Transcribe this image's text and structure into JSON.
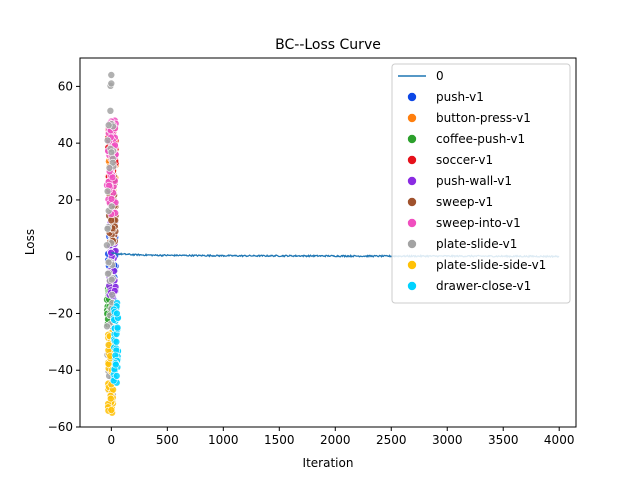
{
  "chart_data": {
    "type": "scatter",
    "title": "BC--Loss Curve",
    "xlabel": "Iteration",
    "ylabel": "Loss",
    "xlim": [
      -280,
      4150
    ],
    "ylim": [
      -60,
      70
    ],
    "xticks": [
      0,
      500,
      1000,
      1500,
      2000,
      2500,
      3000,
      3500,
      4000
    ],
    "yticks": [
      -60,
      -40,
      -20,
      0,
      20,
      40,
      60
    ],
    "legend_position": "top-right",
    "line_series": {
      "name": "0",
      "color": "#1f77b4",
      "points": [
        [
          0,
          1.2
        ],
        [
          50,
          1.0
        ],
        [
          100,
          0.9
        ],
        [
          200,
          0.7
        ],
        [
          400,
          0.5
        ],
        [
          800,
          0.4
        ],
        [
          1200,
          0.3
        ],
        [
          1600,
          0.3
        ],
        [
          2000,
          0.25
        ],
        [
          2400,
          0.2
        ],
        [
          2800,
          0.2
        ],
        [
          3200,
          0.2
        ],
        [
          3600,
          0.15
        ],
        [
          4000,
          0.1
        ]
      ]
    },
    "scatter_series": [
      {
        "name": "push-v1",
        "color": "#0d47e6",
        "x_range": [
          -30,
          40
        ],
        "y_range": [
          -15,
          10
        ],
        "points": [
          [
            20,
            5
          ],
          [
            30,
            -5
          ],
          [
            35,
            2
          ],
          [
            25,
            -10
          ],
          [
            40,
            -12
          ]
        ]
      },
      {
        "name": "button-press-v1",
        "color": "#ff7f0e",
        "x_range": [
          -30,
          40
        ],
        "y_range": [
          20,
          45
        ],
        "points": [
          [
            -5,
            40
          ],
          [
            5,
            35
          ],
          [
            10,
            30
          ],
          [
            0,
            25
          ],
          [
            15,
            42
          ]
        ]
      },
      {
        "name": "coffee-push-v1",
        "color": "#2ca02c",
        "x_range": [
          -40,
          10
        ],
        "y_range": [
          -25,
          -10
        ],
        "points": [
          [
            -20,
            -15
          ],
          [
            -10,
            -20
          ],
          [
            -30,
            -22
          ],
          [
            0,
            -18
          ],
          [
            -15,
            -12
          ]
        ]
      },
      {
        "name": "soccer-v1",
        "color": "#e6111b",
        "x_range": [
          -30,
          40
        ],
        "y_range": [
          25,
          45
        ],
        "points": [
          [
            5,
            38
          ],
          [
            0,
            30
          ],
          [
            10,
            42
          ],
          [
            -5,
            35
          ],
          [
            15,
            28
          ]
        ]
      },
      {
        "name": "push-wall-v1",
        "color": "#8a2be2",
        "x_range": [
          -20,
          40
        ],
        "y_range": [
          -15,
          20
        ],
        "points": [
          [
            20,
            5
          ],
          [
            15,
            8
          ],
          [
            25,
            -5
          ],
          [
            30,
            -12
          ],
          [
            10,
            12
          ]
        ]
      },
      {
        "name": "sweep-v1",
        "color": "#a0522d",
        "x_range": [
          -20,
          40
        ],
        "y_range": [
          5,
          30
        ],
        "points": [
          [
            25,
            27
          ],
          [
            20,
            20
          ],
          [
            15,
            15
          ],
          [
            30,
            18
          ],
          [
            10,
            10
          ]
        ]
      },
      {
        "name": "sweep-into-v1",
        "color": "#f04fbf",
        "x_range": [
          -40,
          40
        ],
        "y_range": [
          15,
          48
        ],
        "points": [
          [
            -10,
            47
          ],
          [
            -5,
            42
          ],
          [
            -15,
            30
          ],
          [
            0,
            15
          ],
          [
            -20,
            25
          ],
          [
            5,
            35
          ]
        ]
      },
      {
        "name": "plate-slide-v1",
        "color": "#a3a3a3",
        "x_range": [
          -40,
          20
        ],
        "y_range": [
          -50,
          64
        ],
        "points": [
          [
            0,
            64
          ],
          [
            0,
            61
          ],
          [
            -25,
            -2
          ],
          [
            -30,
            -6
          ],
          [
            -20,
            -42
          ]
        ]
      },
      {
        "name": "plate-slide-side-v1",
        "color": "#ffc107",
        "x_range": [
          -30,
          20
        ],
        "y_range": [
          -55,
          -25
        ],
        "points": [
          [
            0,
            -45
          ],
          [
            -5,
            -50
          ],
          [
            5,
            -40
          ],
          [
            -10,
            -35
          ],
          [
            0,
            -54
          ],
          [
            -15,
            -28
          ]
        ]
      },
      {
        "name": "drawer-close-v1",
        "color": "#00d2ff",
        "x_range": [
          20,
          60
        ],
        "y_range": [
          -45,
          -15
        ],
        "points": [
          [
            50,
            -20
          ],
          [
            45,
            -30
          ],
          [
            40,
            -38
          ],
          [
            55,
            -25
          ],
          [
            48,
            -42
          ]
        ]
      }
    ]
  }
}
